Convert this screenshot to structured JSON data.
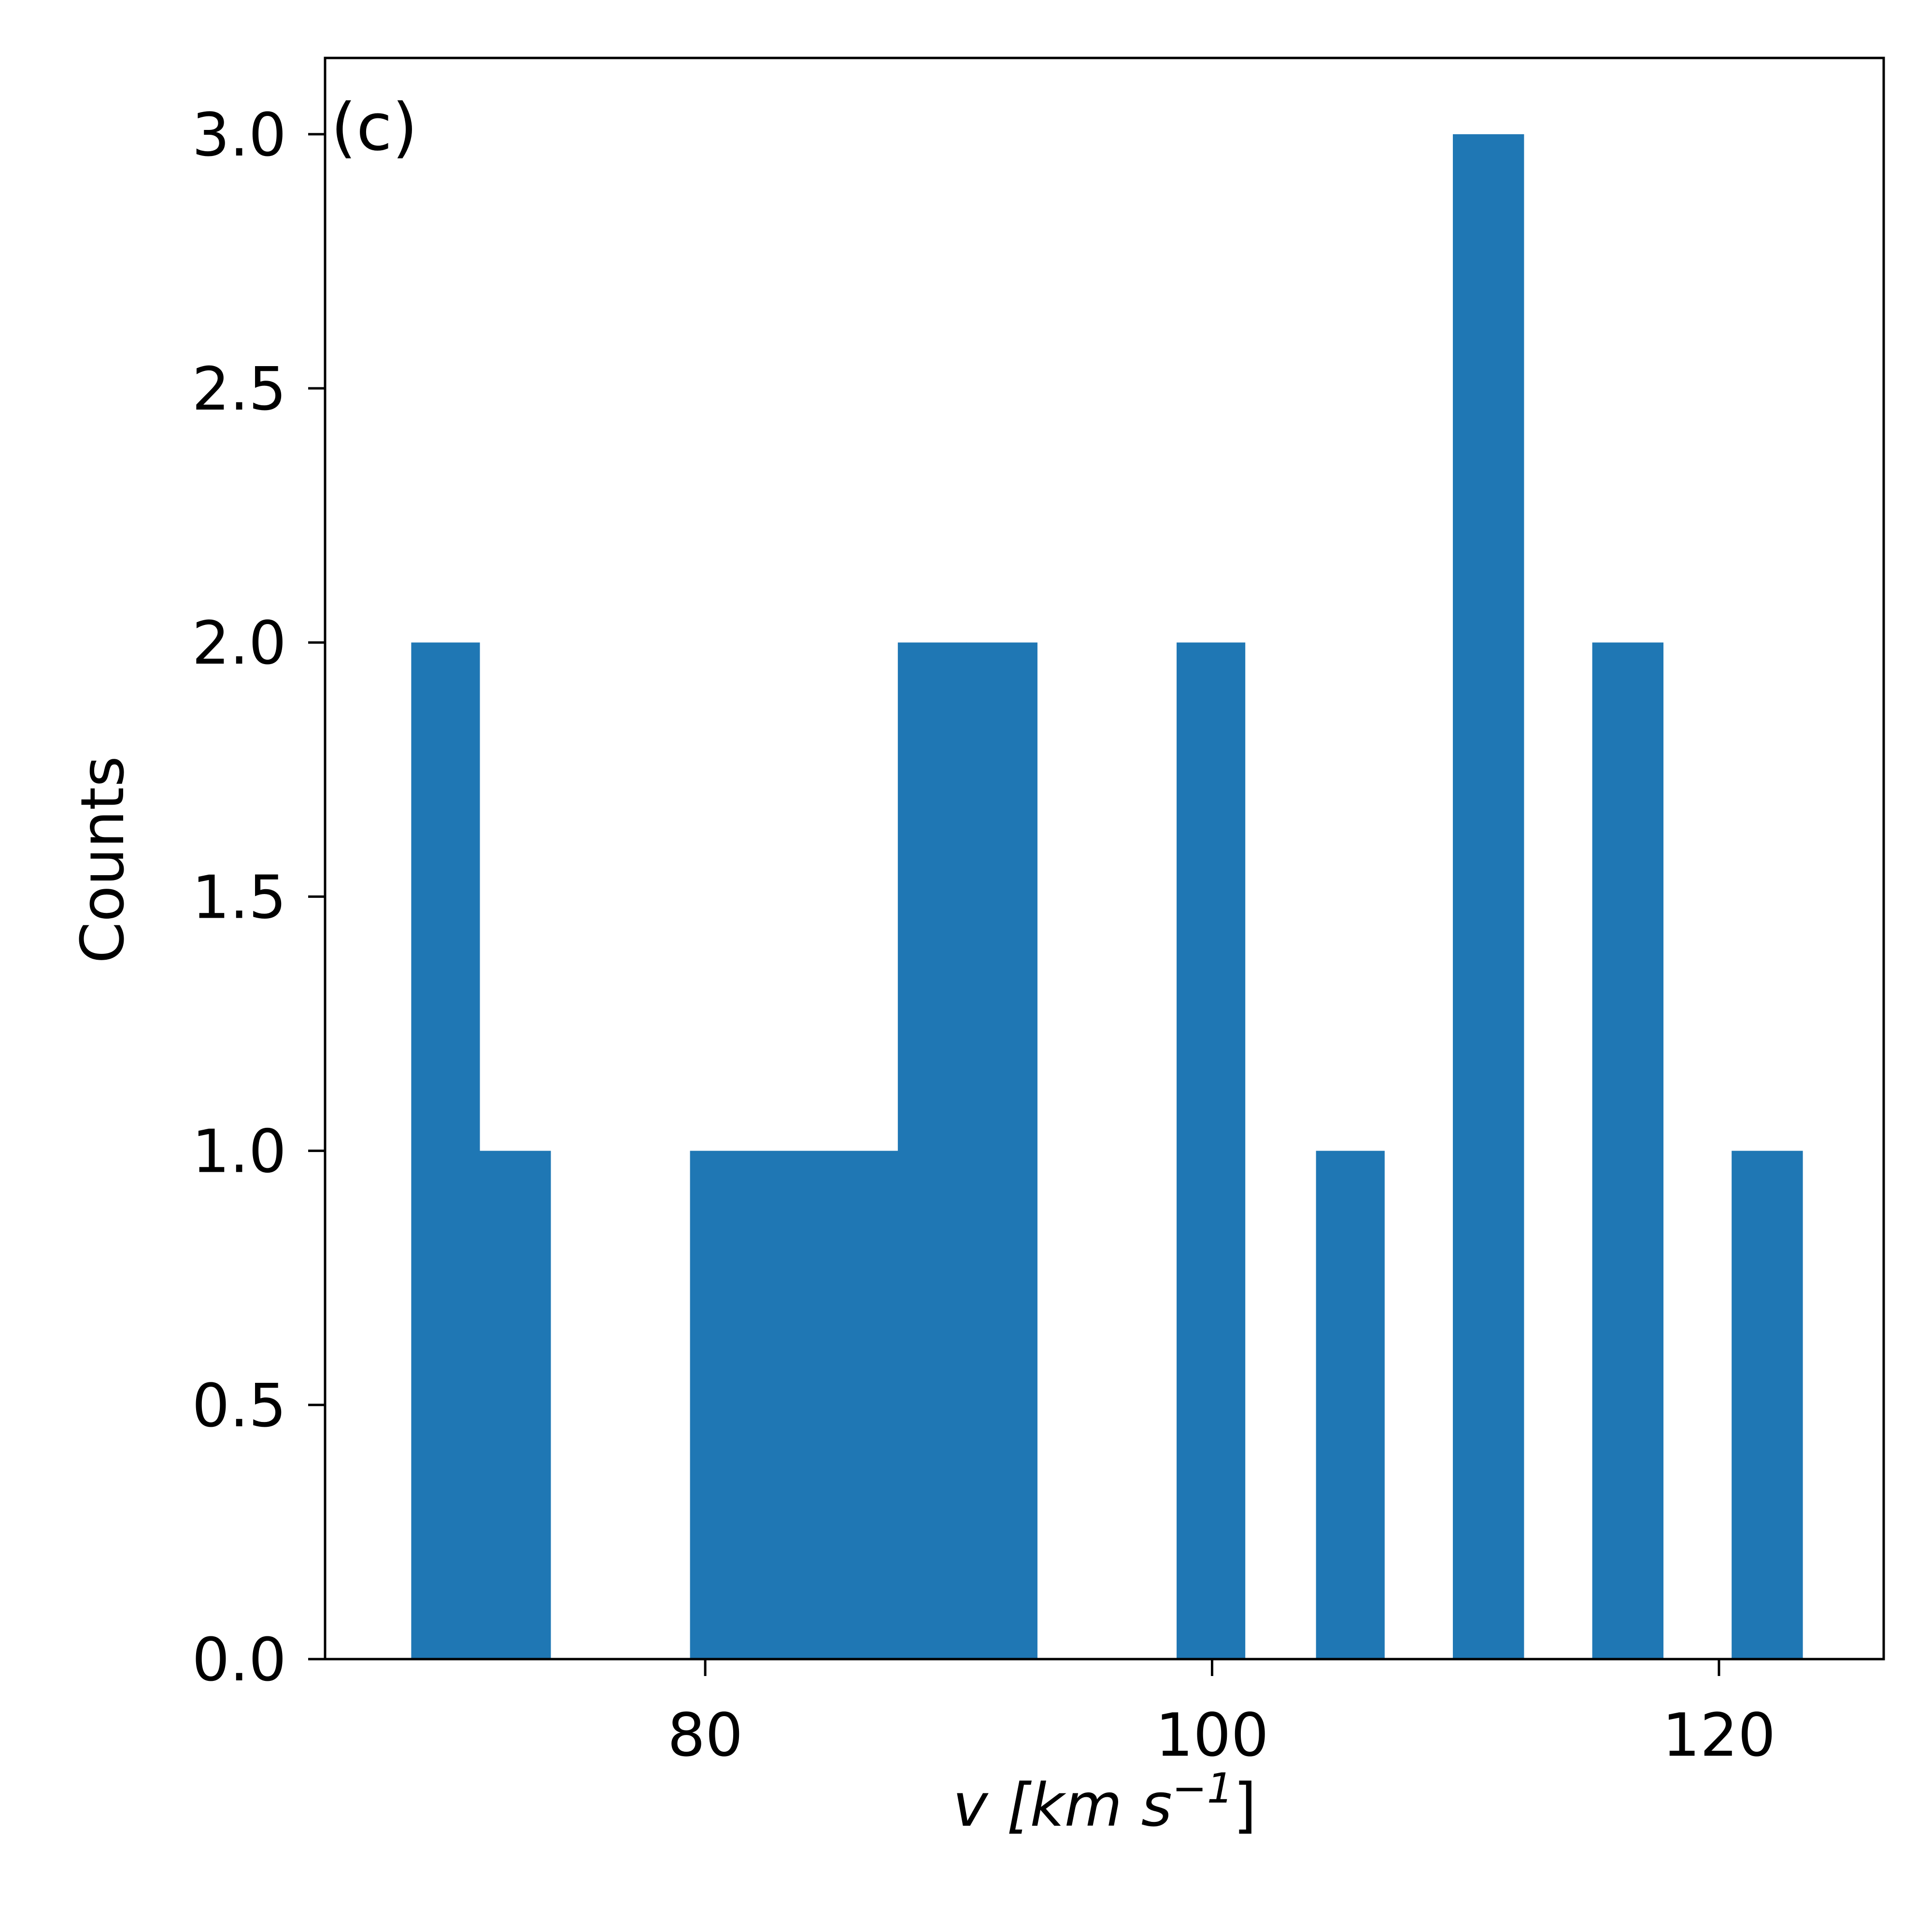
{
  "chart_data": {
    "type": "bar",
    "panel_label": "(c)",
    "xlabel": "v [km s",
    "xlabel_exponent": "−1",
    "xlabel_close": "]",
    "ylabel": "Counts",
    "xlim": [
      65,
      126.5
    ],
    "ylim": [
      0,
      3.15
    ],
    "x_ticks": [
      {
        "value": 80,
        "label": "80"
      },
      {
        "value": 100,
        "label": "100"
      },
      {
        "value": 120,
        "label": "120"
      }
    ],
    "y_ticks": [
      {
        "value": 0.0,
        "label": "0.0"
      },
      {
        "value": 0.5,
        "label": "0.5"
      },
      {
        "value": 1.0,
        "label": "1.0"
      },
      {
        "value": 1.5,
        "label": "1.5"
      },
      {
        "value": 2.0,
        "label": "2.0"
      },
      {
        "value": 2.5,
        "label": "2.5"
      },
      {
        "value": 3.0,
        "label": "3.0"
      }
    ],
    "bins": [
      {
        "x0": 68.4,
        "x1": 71.1,
        "count": 2
      },
      {
        "x0": 71.1,
        "x1": 73.9,
        "count": 1
      },
      {
        "x0": 73.9,
        "x1": 76.6,
        "count": 0
      },
      {
        "x0": 76.6,
        "x1": 79.4,
        "count": 0
      },
      {
        "x0": 79.4,
        "x1": 82.1,
        "count": 1
      },
      {
        "x0": 82.1,
        "x1": 84.8,
        "count": 1
      },
      {
        "x0": 84.8,
        "x1": 87.6,
        "count": 1
      },
      {
        "x0": 87.6,
        "x1": 90.3,
        "count": 2
      },
      {
        "x0": 90.3,
        "x1": 93.1,
        "count": 2
      },
      {
        "x0": 93.1,
        "x1": 95.8,
        "count": 0
      },
      {
        "x0": 95.8,
        "x1": 98.6,
        "count": 0
      },
      {
        "x0": 98.6,
        "x1": 101.3,
        "count": 2
      },
      {
        "x0": 101.3,
        "x1": 104.1,
        "count": 0
      },
      {
        "x0": 104.1,
        "x1": 106.8,
        "count": 1
      },
      {
        "x0": 106.8,
        "x1": 109.5,
        "count": 0
      },
      {
        "x0": 109.5,
        "x1": 112.3,
        "count": 3
      },
      {
        "x0": 112.3,
        "x1": 115.0,
        "count": 0
      },
      {
        "x0": 115.0,
        "x1": 117.8,
        "count": 2
      },
      {
        "x0": 117.8,
        "x1": 120.5,
        "count": 0
      },
      {
        "x0": 120.5,
        "x1": 123.3,
        "count": 1
      }
    ],
    "bar_color": "#1f77b4",
    "grid": false
  }
}
